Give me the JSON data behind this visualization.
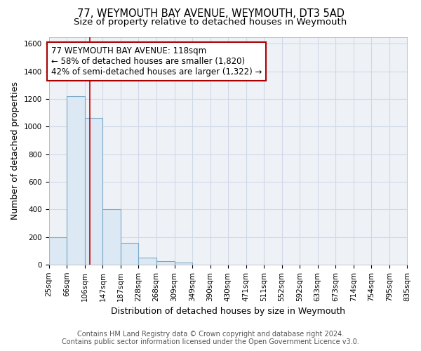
{
  "title": "77, WEYMOUTH BAY AVENUE, WEYMOUTH, DT3 5AD",
  "subtitle": "Size of property relative to detached houses in Weymouth",
  "xlabel": "Distribution of detached houses by size in Weymouth",
  "ylabel": "Number of detached properties",
  "footer_line1": "Contains HM Land Registry data © Crown copyright and database right 2024.",
  "footer_line2": "Contains public sector information licensed under the Open Government Licence v3.0.",
  "bin_edges": [
    25,
    66,
    106,
    147,
    187,
    228,
    268,
    309,
    349,
    390,
    430,
    471,
    511,
    552,
    592,
    633,
    673,
    714,
    754,
    795,
    835
  ],
  "bin_labels": [
    "25sqm",
    "66sqm",
    "106sqm",
    "147sqm",
    "187sqm",
    "228sqm",
    "268sqm",
    "309sqm",
    "349sqm",
    "390sqm",
    "430sqm",
    "471sqm",
    "511sqm",
    "552sqm",
    "592sqm",
    "633sqm",
    "673sqm",
    "714sqm",
    "754sqm",
    "795sqm",
    "835sqm"
  ],
  "bar_heights": [
    200,
    1220,
    1060,
    400,
    155,
    50,
    25,
    15,
    0,
    0,
    0,
    0,
    0,
    0,
    0,
    0,
    0,
    0,
    0,
    0
  ],
  "bar_color": "#dce8f3",
  "bar_edge_color": "#7aaac8",
  "property_size": 118,
  "vline_color": "#cc0000",
  "annotation_line1": "77 WEYMOUTH BAY AVENUE: 118sqm",
  "annotation_line2": "← 58% of detached houses are smaller (1,820)",
  "annotation_line3": "42% of semi-detached houses are larger (1,322) →",
  "annotation_box_edge_color": "#aa0000",
  "ylim": [
    0,
    1650
  ],
  "yticks": [
    0,
    200,
    400,
    600,
    800,
    1000,
    1200,
    1400,
    1600
  ],
  "background_color": "#ffffff",
  "plot_bg_color": "#eef2f7",
  "grid_color": "#d0d8e8",
  "title_fontsize": 10.5,
  "subtitle_fontsize": 9.5,
  "axis_label_fontsize": 9,
  "tick_fontsize": 7.5,
  "footer_fontsize": 7
}
